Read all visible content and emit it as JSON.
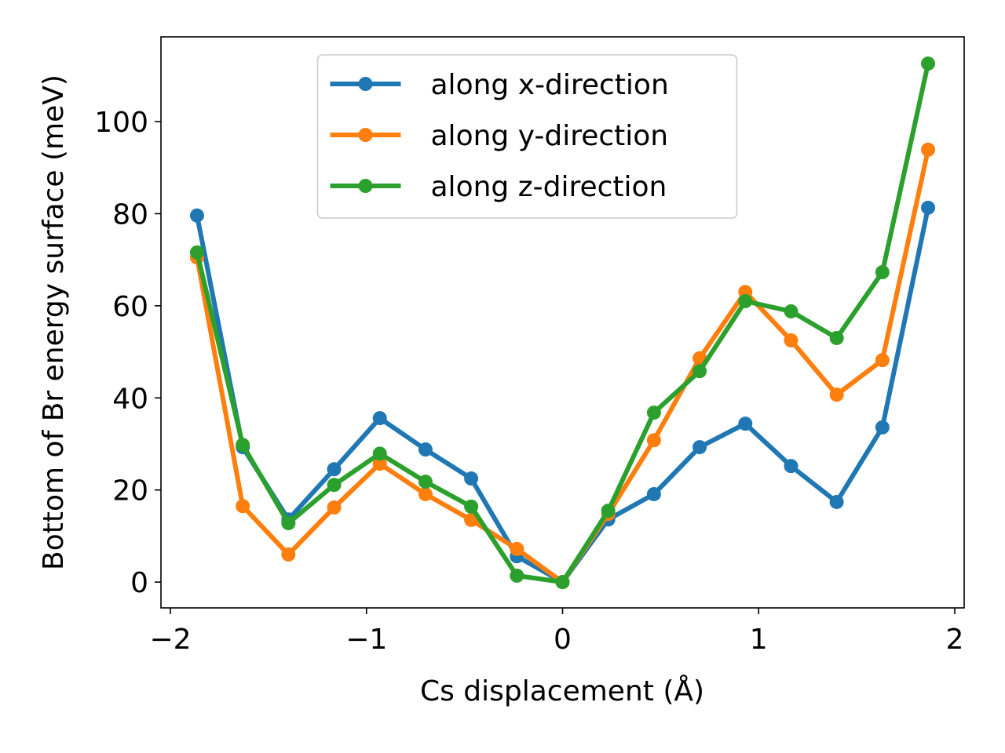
{
  "chart_data": {
    "type": "line",
    "x_label": "Cs displacement (Å)",
    "y_label": "Bottom of Br energy surface (meV)",
    "x": [
      -1.864,
      -1.631,
      -1.398,
      -1.165,
      -0.932,
      -0.699,
      -0.466,
      -0.233,
      0,
      0.233,
      0.466,
      0.699,
      0.932,
      1.165,
      1.398,
      1.631,
      1.864
    ],
    "series": [
      {
        "name": "along x-direction",
        "color": "#1f77b4",
        "values": [
          79.6,
          29.3,
          13.6,
          24.5,
          35.6,
          28.8,
          22.5,
          5.6,
          0,
          13.6,
          19.1,
          29.3,
          34.4,
          25.2,
          17.4,
          33.6,
          81.3
        ]
      },
      {
        "name": "along y-direction",
        "color": "#ff7f0e",
        "values": [
          70.5,
          16.5,
          6.0,
          16.2,
          25.7,
          19.1,
          13.5,
          7.2,
          0,
          14.8,
          30.8,
          48.6,
          63.0,
          52.5,
          40.7,
          48.2,
          93.9
        ]
      },
      {
        "name": "along z-direction",
        "color": "#2ca02c",
        "values": [
          71.6,
          29.8,
          12.8,
          21.1,
          27.9,
          21.8,
          16.4,
          1.4,
          0,
          15.5,
          36.8,
          45.8,
          61.0,
          58.8,
          53.0,
          67.3,
          112.6
        ]
      }
    ],
    "xlim": [
      -2.048,
      2.048
    ],
    "xticks": [
      {
        "value": -2,
        "label": "−2"
      },
      {
        "value": -1,
        "label": "−1"
      },
      0,
      1,
      2
    ],
    "ylim": [
      -5.6,
      118.4
    ],
    "yticks": [
      0,
      20,
      40,
      60,
      80,
      100
    ],
    "legend": "upper center",
    "grid": false
  }
}
